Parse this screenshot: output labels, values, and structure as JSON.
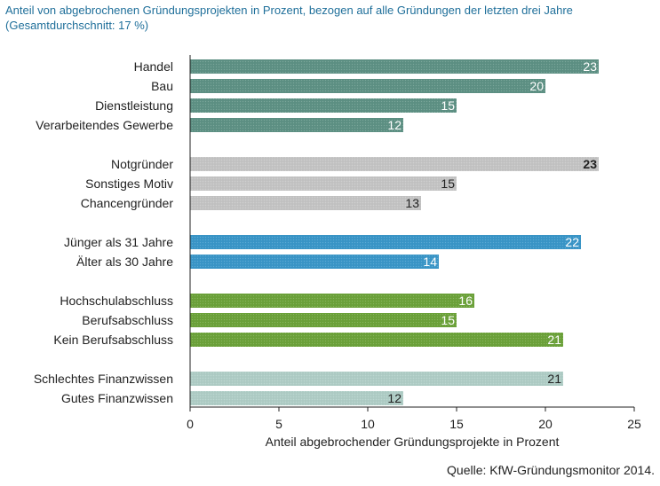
{
  "chart_data": {
    "type": "bar",
    "orientation": "horizontal",
    "title": "Anteil von abgebrochenen Gründungsprojekten in Prozent, bezogen auf alle Gründungen der letzten drei Jahre (Gesamtdurchschnitt: 17 %)",
    "xlabel": "Anteil abgebrochender Gründungsprojekte in Prozent",
    "xlim": [
      0,
      25
    ],
    "xticks": [
      "0",
      "5",
      "10",
      "15",
      "20",
      "25"
    ],
    "grid": false,
    "source": "Quelle: KfW-Gründungsmonitor 2014.",
    "groups": [
      {
        "color": "#5e9184",
        "label_color": "#ffffff",
        "items": [
          {
            "label": "Handel",
            "value": 23
          },
          {
            "label": "Bau",
            "value": 20
          },
          {
            "label": "Dienstleistung",
            "value": 15
          },
          {
            "label": "Verarbeitendes Gewerbe",
            "value": 12
          }
        ]
      },
      {
        "color": "#c4c4c4",
        "label_color": "#222222",
        "items": [
          {
            "label": "Notgründer",
            "value": 23,
            "bold": true
          },
          {
            "label": "Sonstiges Motiv",
            "value": 15
          },
          {
            "label": "Chancengründer",
            "value": 13
          }
        ]
      },
      {
        "color": "#3a96c8",
        "label_color": "#ffffff",
        "items": [
          {
            "label": "Jünger als 31 Jahre",
            "value": 22
          },
          {
            "label": "Älter als 30 Jahre",
            "value": 14
          }
        ]
      },
      {
        "color": "#6ca23a",
        "label_color": "#ffffff",
        "items": [
          {
            "label": "Hochschulabschluss",
            "value": 16
          },
          {
            "label": "Berufsabschluss",
            "value": 15
          },
          {
            "label": "Kein Berufsabschluss",
            "value": 21
          }
        ]
      },
      {
        "color": "#afcdc6",
        "label_color": "#222222",
        "items": [
          {
            "label": "Schlechtes Finanzwissen",
            "value": 21
          },
          {
            "label": "Gutes Finanzwissen",
            "value": 12
          }
        ]
      }
    ]
  }
}
